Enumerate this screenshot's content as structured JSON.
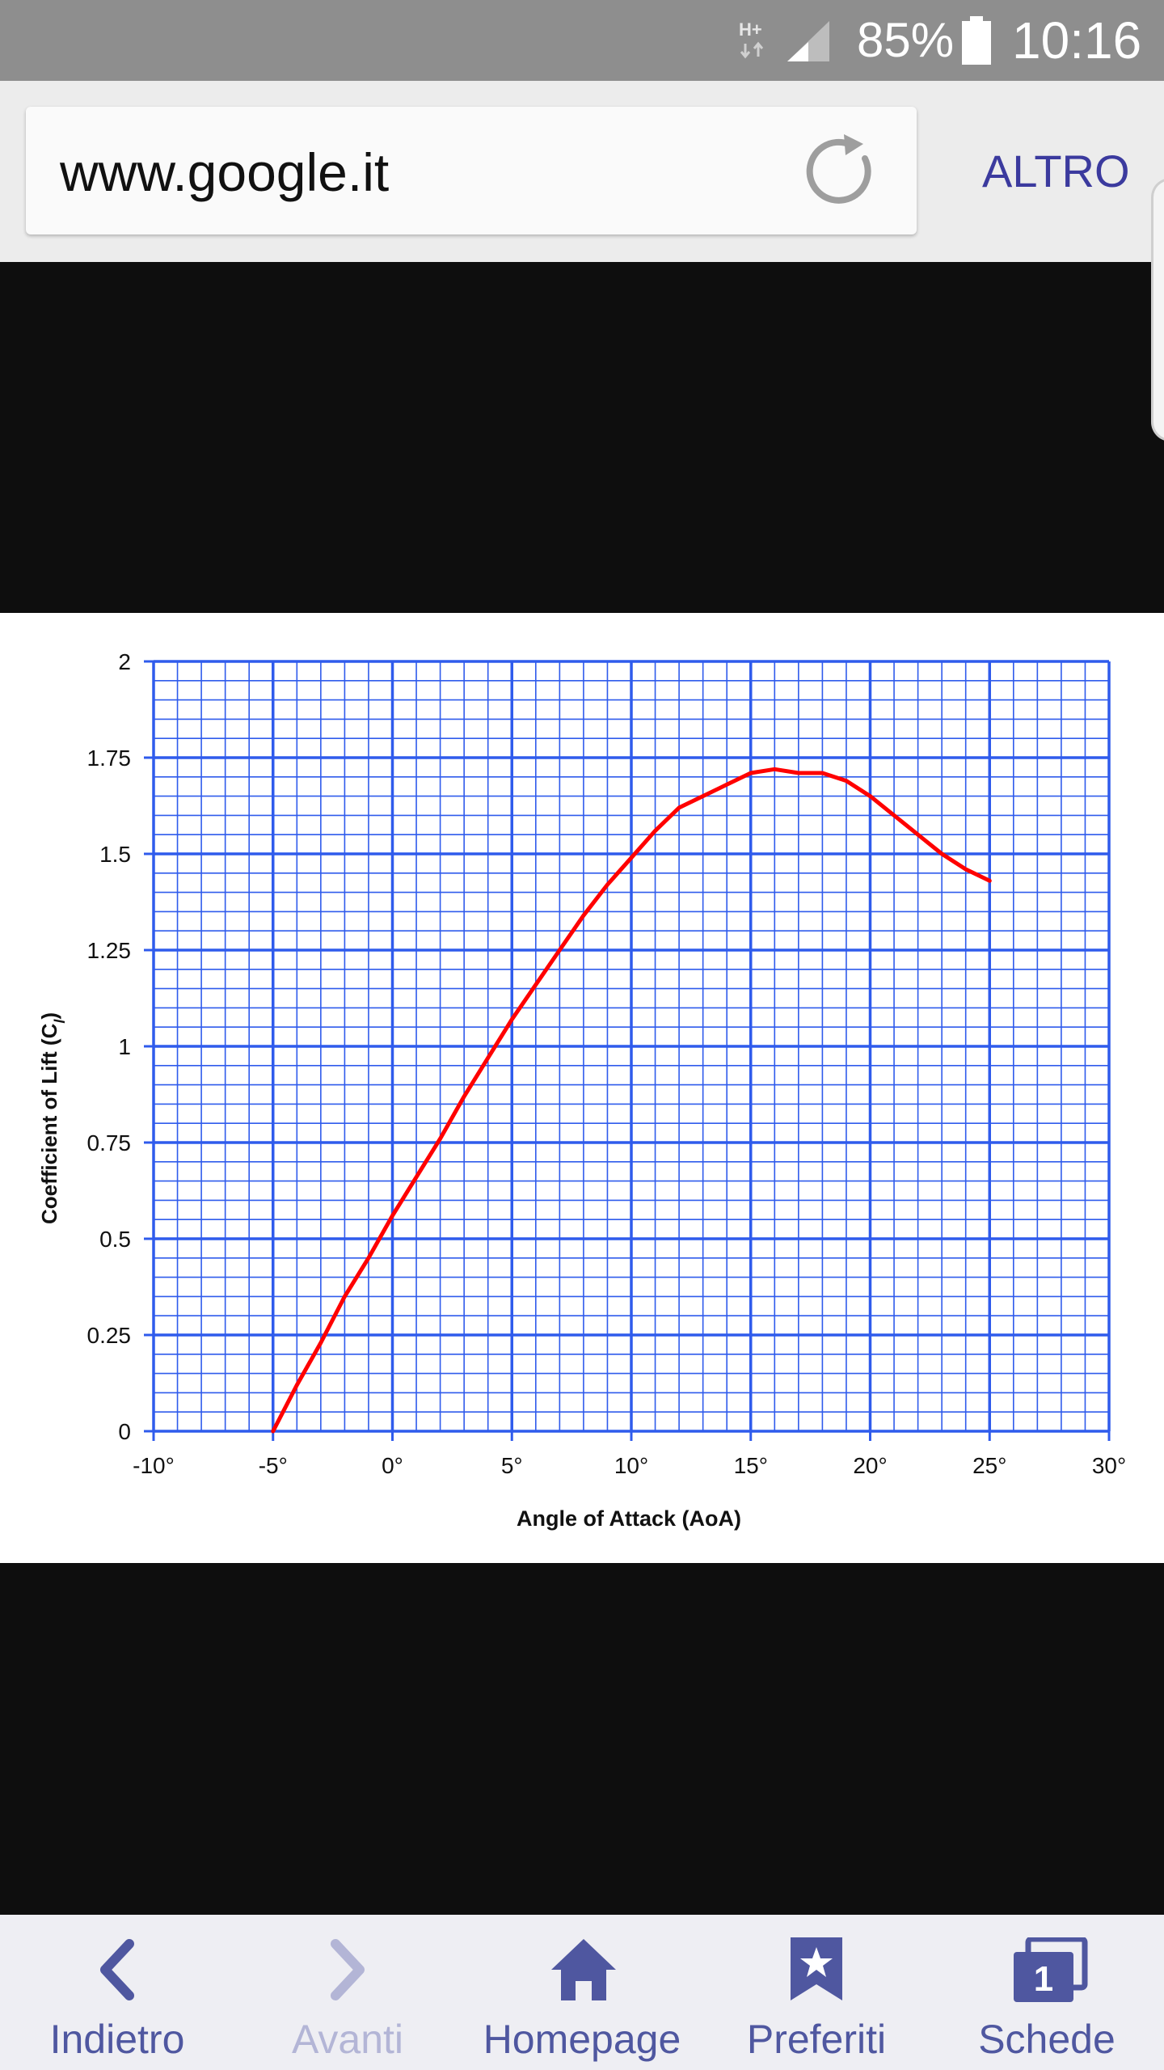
{
  "status_bar": {
    "network": "H+",
    "battery": "85%",
    "time": "10:16"
  },
  "browser": {
    "url": "www.google.it",
    "menu_label": "ALTRO"
  },
  "chart_data": {
    "type": "line",
    "title": "",
    "xlabel": "Angle of Attack (AoA)",
    "ylabel": "Coefficient of Lift (C",
    "ylabel_sub": "l",
    "ylabel_end": ")",
    "xlim": [
      -10,
      30
    ],
    "ylim": [
      0,
      2
    ],
    "xticks": [
      "-10°",
      "-5°",
      "0°",
      "5°",
      "10°",
      "15°",
      "20°",
      "25°",
      "30°"
    ],
    "yticks": [
      "0",
      "0.25",
      "0.5",
      "0.75",
      "1",
      "1.25",
      "1.5",
      "1.75",
      "2"
    ],
    "grid": true,
    "series": [
      {
        "color": "#ff0000",
        "x": [
          -5,
          -4,
          -3,
          -2,
          -1,
          0,
          1,
          2,
          3,
          4,
          5,
          6,
          7,
          8,
          9,
          10,
          11,
          12,
          13,
          14,
          15,
          16,
          17,
          18,
          19,
          20,
          21,
          22,
          23,
          24,
          25
        ],
        "y": [
          0.0,
          0.12,
          0.23,
          0.35,
          0.45,
          0.56,
          0.66,
          0.76,
          0.87,
          0.97,
          1.07,
          1.16,
          1.25,
          1.34,
          1.42,
          1.49,
          1.56,
          1.62,
          1.65,
          1.68,
          1.71,
          1.72,
          1.71,
          1.71,
          1.69,
          1.65,
          1.6,
          1.55,
          1.5,
          1.46,
          1.43
        ]
      }
    ]
  },
  "bottom_nav": {
    "back": "Indietro",
    "forward": "Avanti",
    "home": "Homepage",
    "bookmarks": "Preferiti",
    "tabs": "Schede",
    "tab_count": "1"
  },
  "colors": {
    "grid": "#2f5bec",
    "curve": "#ff0000",
    "nav_accent": "#4f57a0",
    "status_bar": "#8e8e8e"
  }
}
